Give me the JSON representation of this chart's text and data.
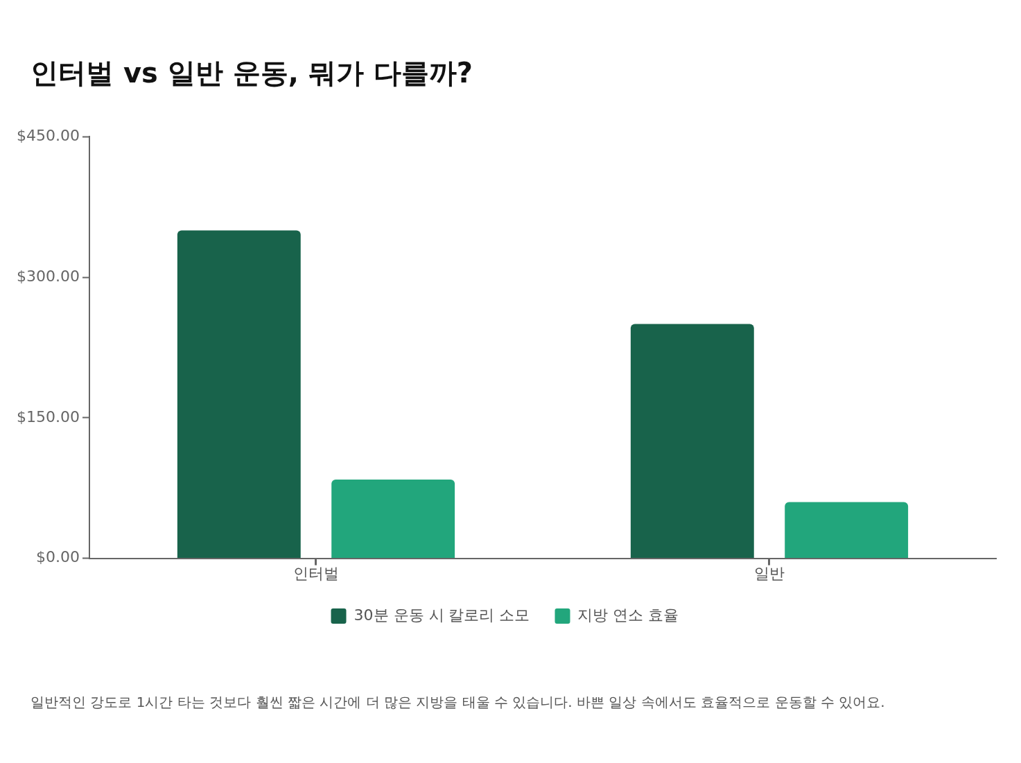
{
  "chart_data": {
    "type": "bar",
    "title": "인터벌 vs 일반 운동, 뭐가 다를까?",
    "categories": [
      "인터벌",
      "일반"
    ],
    "series": [
      {
        "name": "30분 운동 시 칼로리 소모",
        "color": "#18634b",
        "values": [
          350,
          250
        ]
      },
      {
        "name": "지방 연소 효율",
        "color": "#22a67c",
        "values": [
          84,
          60
        ]
      }
    ],
    "ylim": [
      0,
      450
    ],
    "yticks": [
      {
        "value": 0,
        "label": "$0.00"
      },
      {
        "value": 150,
        "label": "$150.00"
      },
      {
        "value": 300,
        "label": "$300.00"
      },
      {
        "value": 450,
        "label": "$450.00"
      }
    ],
    "grid": false,
    "legend": "bottom",
    "annotations": [
      "일반적인 강도로 1시간 타는 것보다 훨씬 짧은 시간에 더 많은 지방을 태울 수 있습니다. 바쁜 일상 속에서도 효율적으로 운동할 수 있어요."
    ]
  }
}
